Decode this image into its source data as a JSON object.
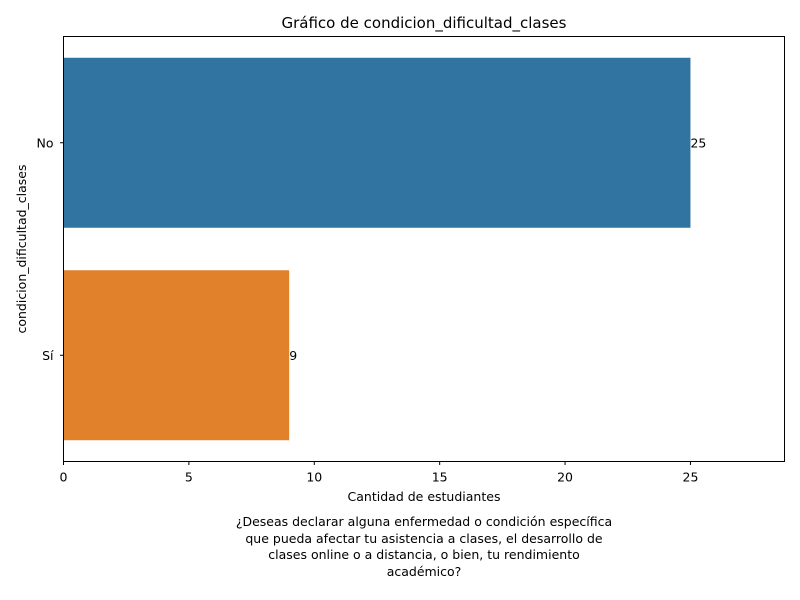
{
  "chart_data": {
    "type": "bar",
    "orientation": "horizontal",
    "title": "Gráfico de condicion_dificultad_clases",
    "xlabel": "Cantidad de estudiantes",
    "ylabel": "condicion_dificultad_clases",
    "categories": [
      "No",
      "Sí"
    ],
    "values": [
      25,
      9
    ],
    "colors": [
      "#3274a1",
      "#e1812c"
    ],
    "xlim": [
      0,
      28.75
    ],
    "xticks": [
      0,
      5,
      10,
      15,
      20,
      25
    ],
    "grid": false,
    "legend": "none"
  },
  "caption": {
    "lines": [
      "¿Deseas declarar alguna enfermedad o condición específica",
      "que pueda afectar tu asistencia a clases, el desarrollo de",
      "clases online o a distancia, o bien, tu rendimiento",
      "académico?"
    ]
  }
}
